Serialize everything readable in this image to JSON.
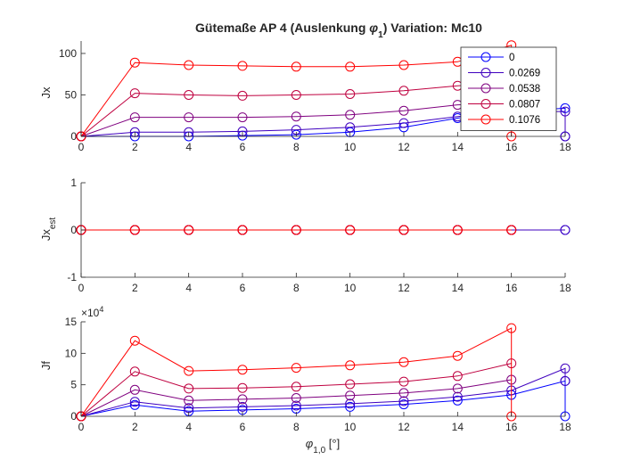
{
  "figure": {
    "title_main": "Gütemaße AP 4 (Auslenkung ",
    "title_sym": "φ",
    "title_sub": "1",
    "title_tail": ")  Variation: Mc10"
  },
  "chart_data": [
    {
      "type": "line",
      "ylabel": "Jx",
      "xlim": [
        0,
        18
      ],
      "ylim": [
        0,
        115
      ],
      "yticks": [
        0,
        50,
        100
      ],
      "xticks": [
        0,
        2,
        4,
        6,
        8,
        10,
        12,
        14,
        16,
        18
      ],
      "legend": {
        "location": "top-right",
        "entries": [
          "0",
          "0.0269",
          "0.0538",
          "0.0807",
          "0.1076"
        ]
      },
      "series": [
        {
          "name": "0",
          "color": "#0000ff",
          "x": [
            0,
            2,
            4,
            6,
            8,
            10,
            12,
            14,
            16,
            18,
            18
          ],
          "y": [
            0,
            0,
            0,
            1,
            2,
            5,
            11,
            22,
            30,
            34,
            0
          ]
        },
        {
          "name": "0.0269",
          "color": "#3f00bf",
          "x": [
            0,
            2,
            4,
            6,
            8,
            10,
            12,
            14,
            16,
            18,
            18
          ],
          "y": [
            0,
            5,
            5,
            6,
            8,
            11,
            16,
            24,
            30,
            30,
            0
          ]
        },
        {
          "name": "0.0538",
          "color": "#7f007f",
          "x": [
            0,
            2,
            4,
            6,
            8,
            10,
            12,
            14,
            16
          ],
          "y": [
            0,
            23,
            23,
            23,
            24,
            26,
            31,
            38,
            40
          ]
        },
        {
          "name": "0.0807",
          "color": "#bf003f",
          "x": [
            0,
            2,
            4,
            6,
            8,
            10,
            12,
            14,
            16
          ],
          "y": [
            0,
            52,
            50,
            49,
            50,
            51,
            55,
            61,
            65
          ]
        },
        {
          "name": "0.1076",
          "color": "#ff0000",
          "x": [
            0,
            2,
            4,
            6,
            8,
            10,
            12,
            14,
            16,
            16
          ],
          "y": [
            0,
            89,
            86,
            85,
            84,
            84,
            86,
            90,
            110,
            0
          ]
        }
      ]
    },
    {
      "type": "line",
      "ylabel": "Jx",
      "ylabel_sub": "est",
      "xlim": [
        0,
        18
      ],
      "ylim": [
        -1,
        1
      ],
      "yticks": [
        -1,
        0,
        1
      ],
      "xticks": [
        0,
        2,
        4,
        6,
        8,
        10,
        12,
        14,
        16,
        18
      ],
      "series": [
        {
          "name": "0",
          "color": "#0000ff",
          "x": [
            0,
            2,
            4,
            6,
            8,
            10,
            12,
            14,
            16,
            18
          ],
          "y": [
            0,
            0,
            0,
            0,
            0,
            0,
            0,
            0,
            0,
            0
          ]
        },
        {
          "name": "0.0269",
          "color": "#3f00bf",
          "x": [
            0,
            2,
            4,
            6,
            8,
            10,
            12,
            14,
            16,
            18
          ],
          "y": [
            0,
            0,
            0,
            0,
            0,
            0,
            0,
            0,
            0,
            0
          ]
        },
        {
          "name": "0.0538",
          "color": "#7f007f",
          "x": [
            0,
            2,
            4,
            6,
            8,
            10,
            12,
            14,
            16
          ],
          "y": [
            0,
            0,
            0,
            0,
            0,
            0,
            0,
            0,
            0
          ]
        },
        {
          "name": "0.0807",
          "color": "#bf003f",
          "x": [
            0,
            2,
            4,
            6,
            8,
            10,
            12,
            14,
            16
          ],
          "y": [
            0,
            0,
            0,
            0,
            0,
            0,
            0,
            0,
            0
          ]
        },
        {
          "name": "0.1076",
          "color": "#ff0000",
          "x": [
            0,
            2,
            4,
            6,
            8,
            10,
            12,
            14,
            16
          ],
          "y": [
            0,
            0,
            0,
            0,
            0,
            0,
            0,
            0,
            0
          ]
        }
      ]
    },
    {
      "type": "line",
      "ylabel": "Jf",
      "xlabel": "φ",
      "xlabel_sub": "1,0",
      "xlabel_unit": " [°]",
      "exponent": "×10",
      "exponent_power": "4",
      "xlim": [
        0,
        18
      ],
      "ylim": [
        0,
        150000
      ],
      "yticks": [
        0,
        50000,
        100000,
        150000
      ],
      "ytick_labels": [
        "0",
        "5",
        "10",
        "15"
      ],
      "xticks": [
        0,
        2,
        4,
        6,
        8,
        10,
        12,
        14,
        16,
        18
      ],
      "series": [
        {
          "name": "0",
          "color": "#0000ff",
          "x": [
            0,
            2,
            4,
            6,
            8,
            10,
            12,
            14,
            16,
            18,
            18
          ],
          "y": [
            0,
            18000,
            8000,
            10000,
            12000,
            15000,
            19000,
            25000,
            34000,
            56000,
            0
          ]
        },
        {
          "name": "0.0269",
          "color": "#3f00bf",
          "x": [
            0,
            2,
            4,
            6,
            8,
            10,
            12,
            14,
            16,
            18,
            18
          ],
          "y": [
            0,
            23000,
            13000,
            15000,
            17000,
            20000,
            24000,
            31000,
            41000,
            76000,
            56000
          ]
        },
        {
          "name": "0.0538",
          "color": "#7f007f",
          "x": [
            0,
            2,
            4,
            6,
            8,
            10,
            12,
            14,
            16
          ],
          "y": [
            0,
            42000,
            25000,
            27000,
            29000,
            33000,
            37000,
            44000,
            58000
          ]
        },
        {
          "name": "0.0807",
          "color": "#bf003f",
          "x": [
            0,
            2,
            4,
            6,
            8,
            10,
            12,
            14,
            16
          ],
          "y": [
            0,
            71000,
            44000,
            45000,
            47000,
            51000,
            55000,
            64000,
            84000
          ]
        },
        {
          "name": "0.1076",
          "color": "#ff0000",
          "x": [
            0,
            2,
            4,
            6,
            8,
            10,
            12,
            14,
            16,
            16
          ],
          "y": [
            0,
            120000,
            72000,
            74000,
            77000,
            81000,
            86000,
            96000,
            140000,
            0
          ]
        }
      ]
    }
  ]
}
